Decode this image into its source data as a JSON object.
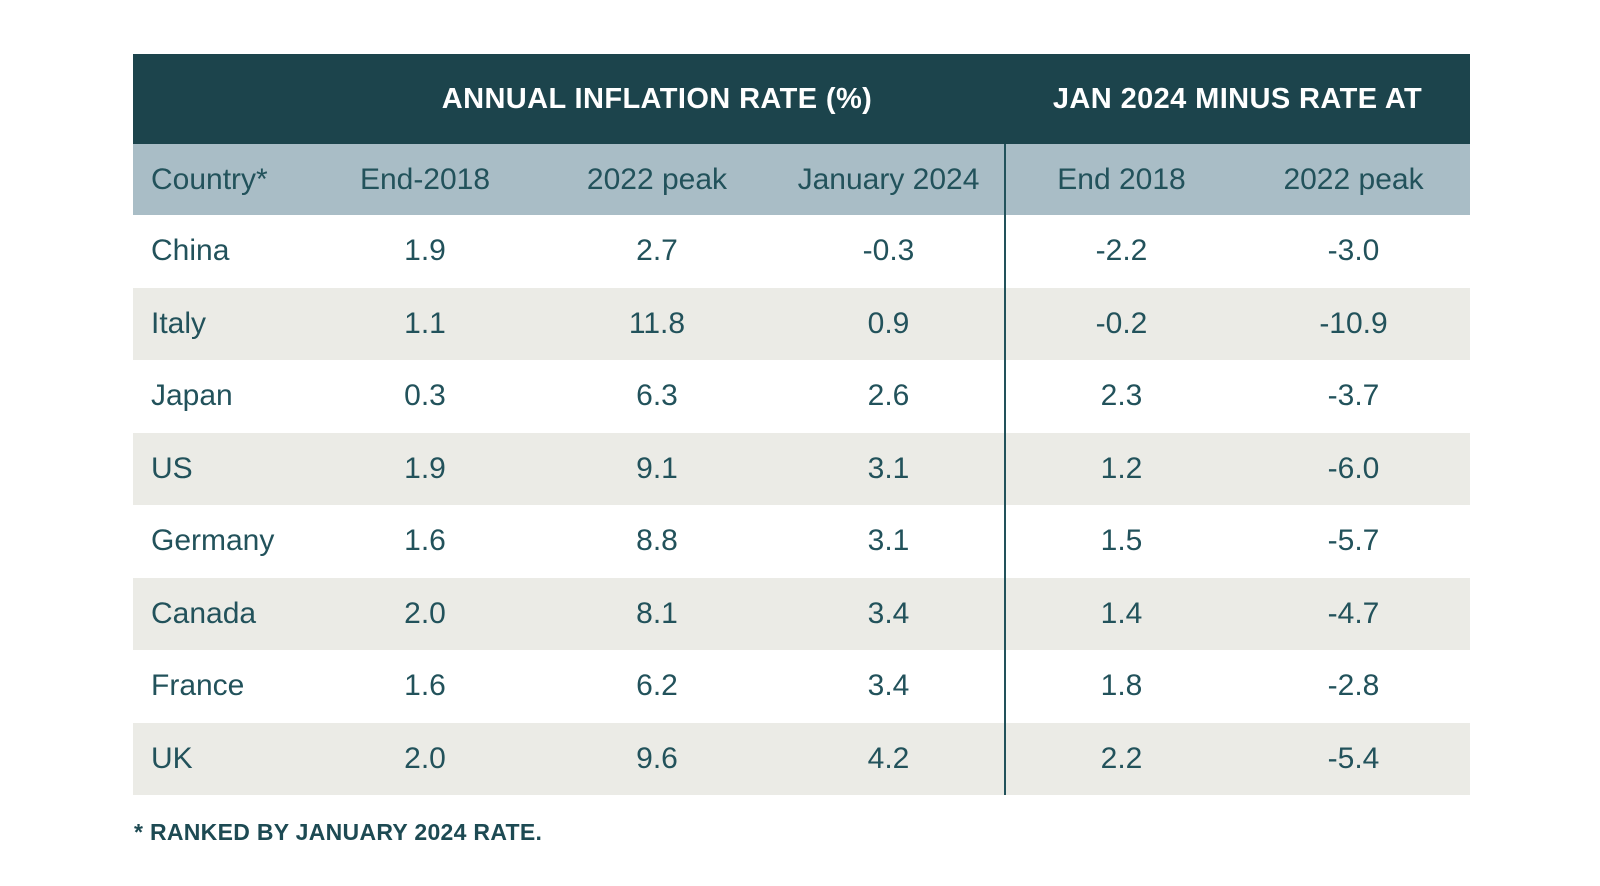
{
  "table": {
    "group_headers": [
      {
        "label": "ANNUAL INFLATION RATE (%)"
      },
      {
        "label": "JAN 2024 MINUS RATE AT"
      }
    ],
    "columns": [
      "Country*",
      "End-2018",
      "2022 peak",
      "January 2024",
      "End 2018",
      "2022 peak"
    ],
    "rows": [
      {
        "country": "China",
        "end_2018": "1.9",
        "peak_2022": "2.7",
        "jan_2024": "-0.3",
        "diff_end_2018": "-2.2",
        "diff_peak_2022": "-3.0"
      },
      {
        "country": "Italy",
        "end_2018": "1.1",
        "peak_2022": "11.8",
        "jan_2024": "0.9",
        "diff_end_2018": "-0.2",
        "diff_peak_2022": "-10.9"
      },
      {
        "country": "Japan",
        "end_2018": "0.3",
        "peak_2022": "6.3",
        "jan_2024": "2.6",
        "diff_end_2018": "2.3",
        "diff_peak_2022": "-3.7"
      },
      {
        "country": "US",
        "end_2018": "1.9",
        "peak_2022": "9.1",
        "jan_2024": "3.1",
        "diff_end_2018": "1.2",
        "diff_peak_2022": "-6.0"
      },
      {
        "country": "Germany",
        "end_2018": "1.6",
        "peak_2022": "8.8",
        "jan_2024": "3.1",
        "diff_end_2018": "1.5",
        "diff_peak_2022": "-5.7"
      },
      {
        "country": "Canada",
        "end_2018": "2.0",
        "peak_2022": "8.1",
        "jan_2024": "3.4",
        "diff_end_2018": "1.4",
        "diff_peak_2022": "-4.7"
      },
      {
        "country": "France",
        "end_2018": "1.6",
        "peak_2022": "6.2",
        "jan_2024": "3.4",
        "diff_end_2018": "1.8",
        "diff_peak_2022": "-2.8"
      },
      {
        "country": "UK",
        "end_2018": "2.0",
        "peak_2022": "9.6",
        "jan_2024": "4.2",
        "diff_end_2018": "2.2",
        "diff_peak_2022": "-5.4"
      }
    ]
  },
  "footnote": "* RANKED BY JANUARY 2024 RATE.",
  "colors": {
    "header_bg": "#1c444c",
    "subheader_bg": "#a9bdc6",
    "alt_row_bg": "#ebebe6",
    "text": "#22525b",
    "header_text": "#ffffff",
    "divider": "#22525b"
  },
  "chart_data": {
    "type": "table",
    "title": "ANNUAL INFLATION RATE (%) / JAN 2024 MINUS RATE AT",
    "group_headers": [
      {
        "label": "ANNUAL INFLATION RATE (%)",
        "columns": [
          "End-2018",
          "2022 peak",
          "January 2024"
        ]
      },
      {
        "label": "JAN 2024 MINUS RATE AT",
        "columns": [
          "End 2018",
          "2022 peak"
        ]
      }
    ],
    "categories": [
      "China",
      "Italy",
      "Japan",
      "US",
      "Germany",
      "Canada",
      "France",
      "UK"
    ],
    "series": [
      {
        "name": "End-2018",
        "values": [
          1.9,
          1.1,
          0.3,
          1.9,
          1.6,
          2.0,
          1.6,
          2.0
        ]
      },
      {
        "name": "2022 peak",
        "values": [
          2.7,
          11.8,
          6.3,
          9.1,
          8.8,
          8.1,
          6.2,
          9.6
        ]
      },
      {
        "name": "January 2024",
        "values": [
          -0.3,
          0.9,
          2.6,
          3.1,
          3.1,
          3.4,
          3.4,
          4.2
        ]
      },
      {
        "name": "Jan 2024 minus End 2018",
        "values": [
          -2.2,
          -0.2,
          2.3,
          1.2,
          1.5,
          1.4,
          1.8,
          2.2
        ]
      },
      {
        "name": "Jan 2024 minus 2022 peak",
        "values": [
          -3.0,
          -10.9,
          -3.7,
          -6.0,
          -5.7,
          -4.7,
          -2.8,
          -5.4
        ]
      }
    ],
    "footnote": "* RANKED BY JANUARY 2024 RATE."
  }
}
